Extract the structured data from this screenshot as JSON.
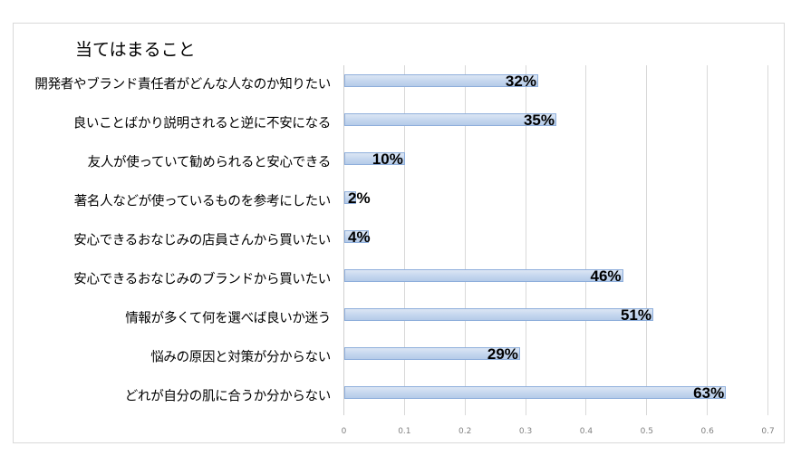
{
  "chart_data": {
    "type": "bar",
    "orientation": "horizontal",
    "title": "当てはまること",
    "xlabel": "",
    "ylabel": "",
    "xlim": [
      0,
      0.7
    ],
    "x_ticks": [
      "0",
      "0.1",
      "0.2",
      "0.3",
      "0.4",
      "0.5",
      "0.6",
      "0.7"
    ],
    "grid": "vertical",
    "legend": "none",
    "categories": [
      "開発者やブランド責任者がどんな人なのか知りたい",
      "良いことばかり説明されると逆に不安になる",
      "友人が使っていて勧められると安心できる",
      "著名人などが使っているものを参考にしたい",
      "安心できるおなじみの店員さんから買いたい",
      "安心できるおなじみのブランドから買いたい",
      "情報が多くて何を選べば良いか迷う",
      "悩みの原因と対策が分からない",
      "どれが自分の肌に合うか分からない"
    ],
    "values": [
      0.32,
      0.35,
      0.1,
      0.02,
      0.04,
      0.46,
      0.51,
      0.29,
      0.63
    ],
    "data_labels": [
      "32%",
      "35%",
      "10%",
      "2%",
      "4%",
      "46%",
      "51%",
      "29%",
      "63%"
    ],
    "bar_color": "#c6d9f1",
    "bar_border": "#8eaedb"
  }
}
